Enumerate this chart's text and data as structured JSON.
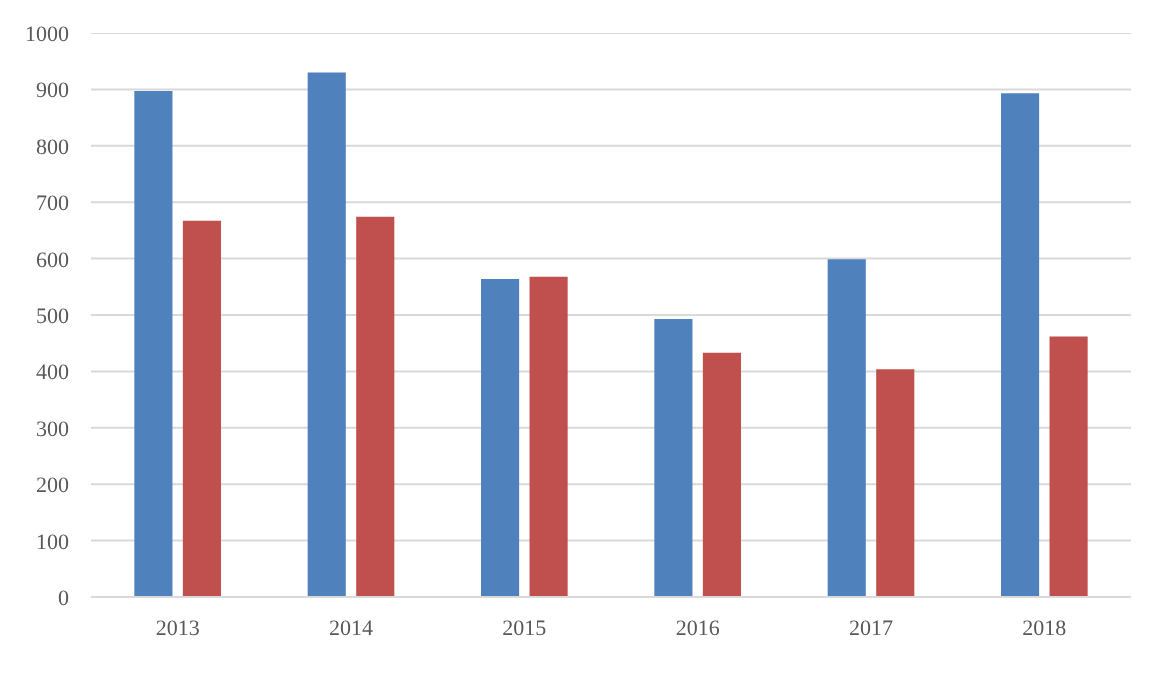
{
  "chart_data": {
    "type": "bar",
    "categories": [
      "2013",
      "2014",
      "2015",
      "2016",
      "2017",
      "2018"
    ],
    "series": [
      {
        "color": "#4f81bd",
        "values": [
          897,
          930,
          564,
          493,
          599,
          893
        ]
      },
      {
        "color": "#c0504d",
        "values": [
          667,
          674,
          568,
          433,
          404,
          462
        ]
      }
    ],
    "ylim": [
      0,
      1000
    ],
    "yticks": [
      0,
      100,
      200,
      300,
      400,
      500,
      600,
      700,
      800,
      900,
      1000
    ],
    "grid": "y"
  }
}
